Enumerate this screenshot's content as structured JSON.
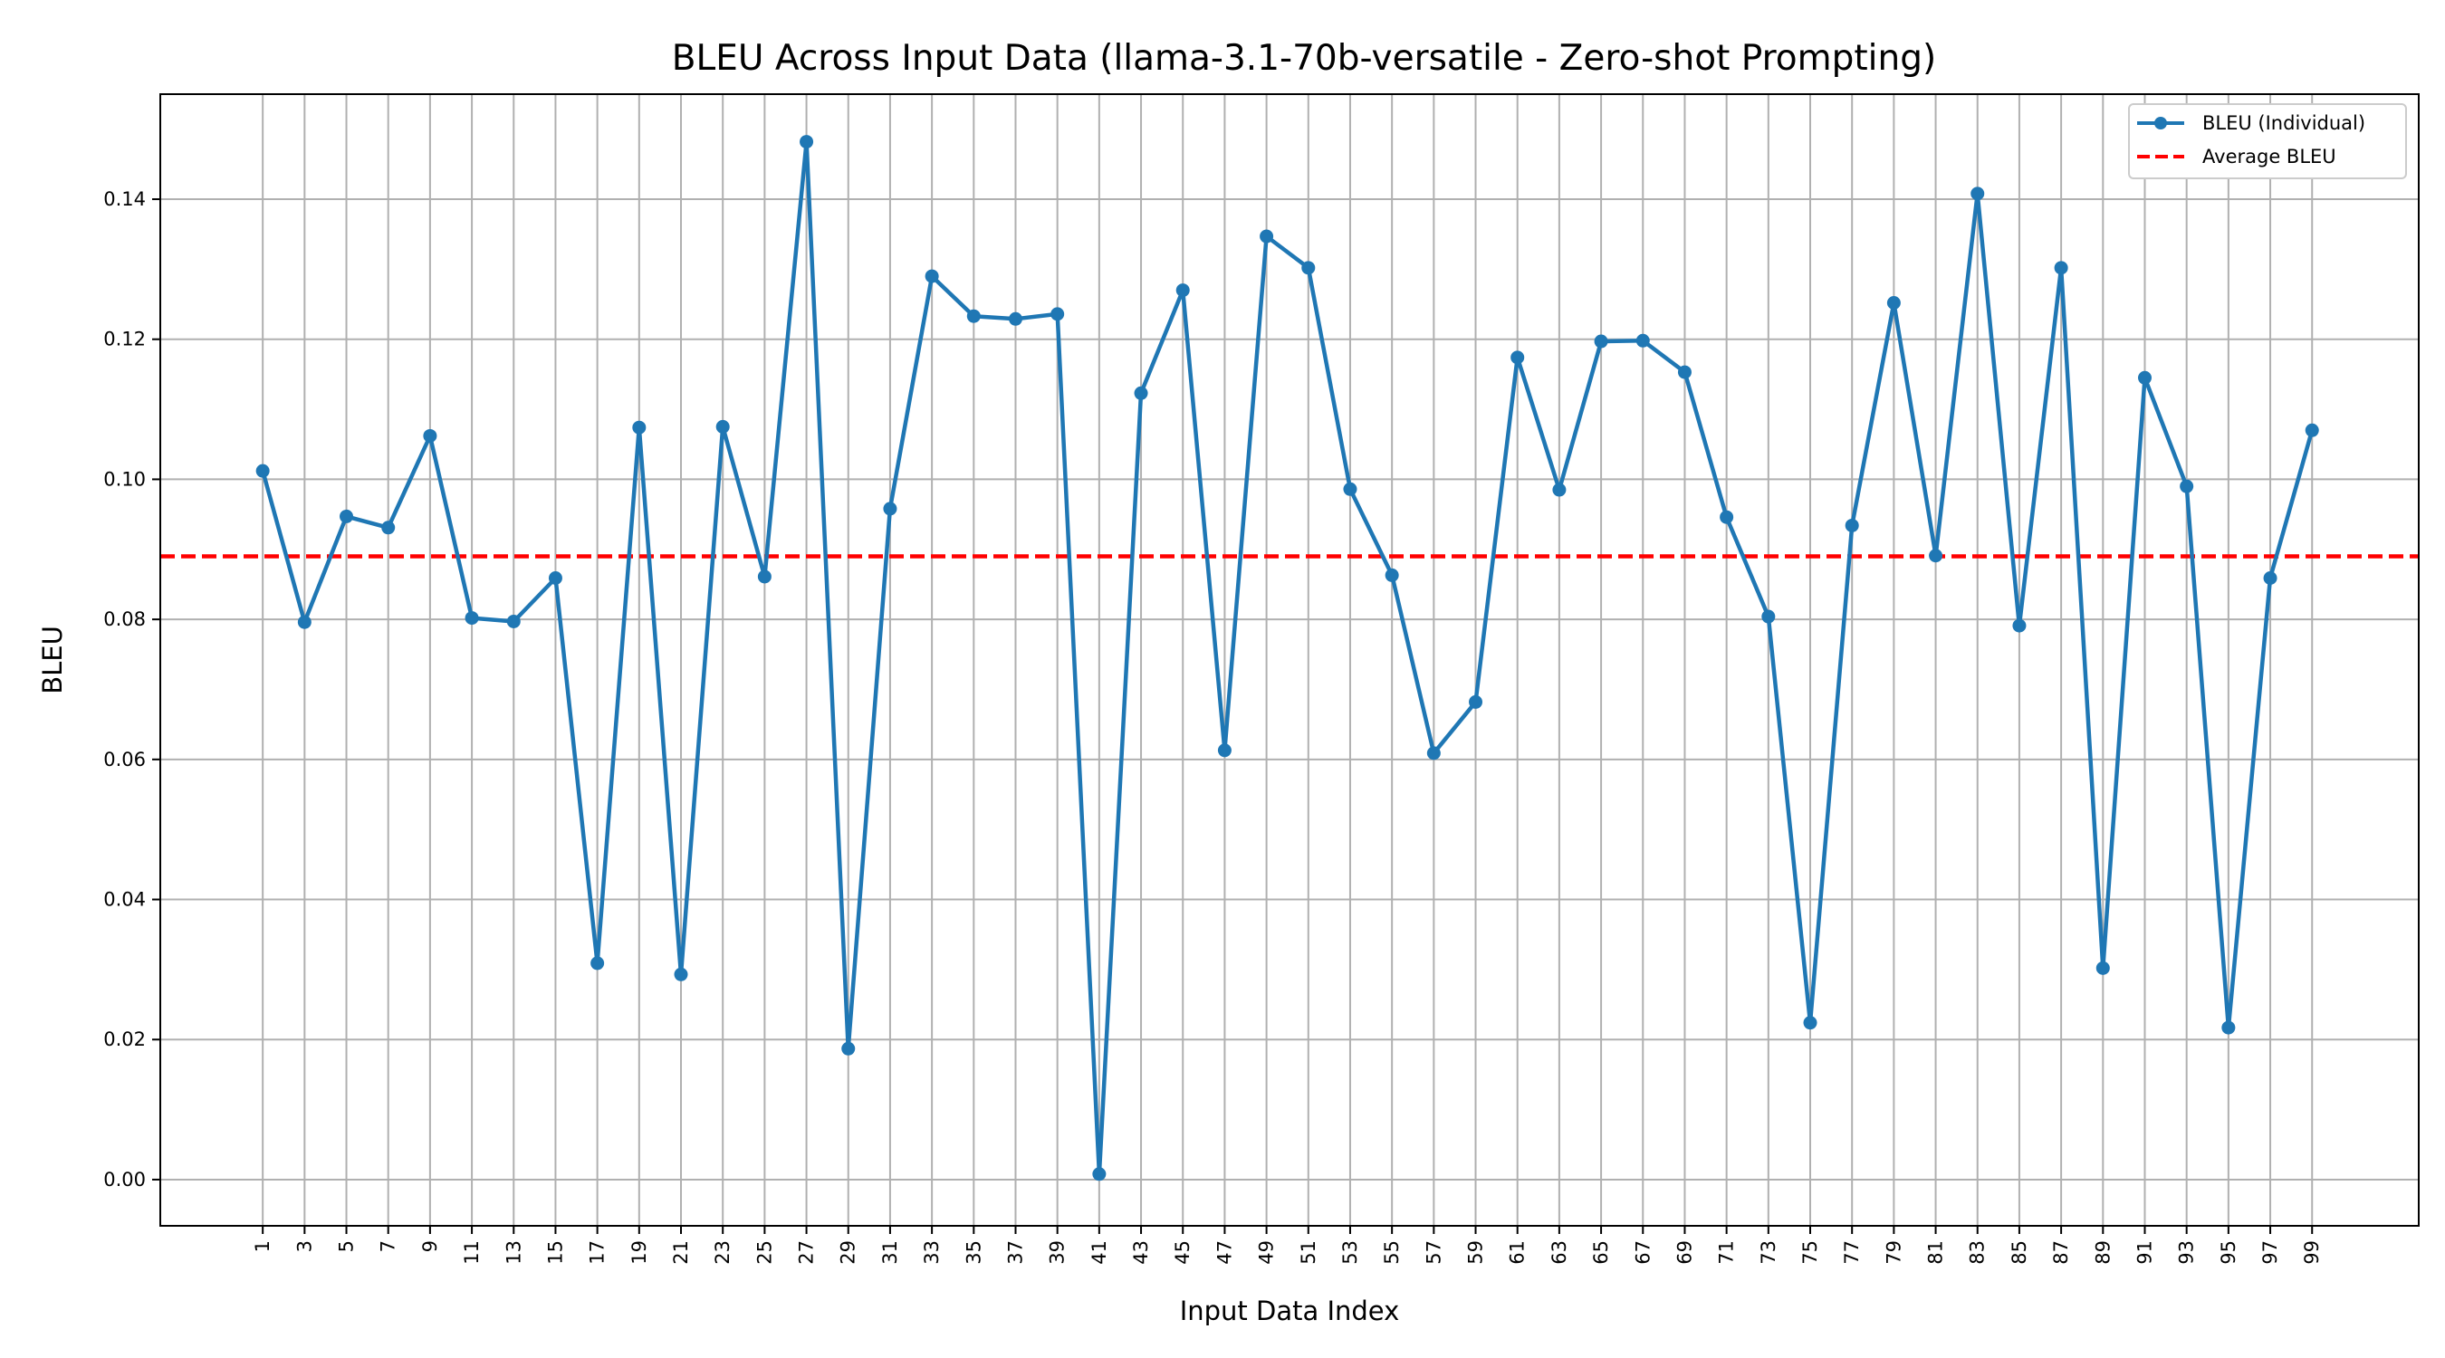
{
  "chart_data": {
    "type": "line",
    "title": "BLEU Across Input Data (llama-3.1-70b-versatile - Zero-shot Prompting)",
    "xlabel": "Input Data Index",
    "ylabel": "BLEU",
    "x_ticks": [
      1,
      3,
      5,
      7,
      9,
      11,
      13,
      15,
      17,
      19,
      21,
      23,
      25,
      27,
      29,
      31,
      33,
      35,
      37,
      39,
      41,
      43,
      45,
      47,
      49,
      51,
      53,
      55,
      57,
      59,
      61,
      63,
      65,
      67,
      69,
      71,
      73,
      75,
      77,
      79,
      81,
      83,
      85,
      87,
      89,
      91,
      93,
      95,
      97,
      99
    ],
    "y_ticks": [
      "0.00",
      "0.02",
      "0.04",
      "0.06",
      "0.08",
      "0.10",
      "0.12",
      "0.14"
    ],
    "xlim": [
      -3.9,
      104.1
    ],
    "ylim": [
      -0.0066,
      0.155
    ],
    "grid": true,
    "legend_position": "top-right",
    "series": [
      {
        "name": "BLEU (Individual)",
        "color": "#1f77b4",
        "marker": "circle",
        "x": [
          1,
          3,
          5,
          7,
          9,
          11,
          13,
          15,
          17,
          19,
          21,
          23,
          25,
          27,
          29,
          31,
          33,
          35,
          37,
          39,
          41,
          43,
          45,
          47,
          49,
          51,
          53,
          55,
          57,
          59,
          61,
          63,
          65,
          67,
          69,
          71,
          73,
          75,
          77,
          79,
          81,
          83,
          85,
          87,
          89,
          91,
          93,
          95,
          97,
          99
        ],
        "y": [
          0.1012,
          0.0796,
          0.0947,
          0.0931,
          0.1062,
          0.0802,
          0.0797,
          0.0859,
          0.0309,
          0.1074,
          0.0293,
          0.1075,
          0.0861,
          0.1482,
          0.0187,
          0.0958,
          0.129,
          0.1233,
          0.1229,
          0.1236,
          0.0008,
          0.1123,
          0.127,
          0.0613,
          0.1347,
          0.1302,
          0.0986,
          0.0863,
          0.0609,
          0.0682,
          0.1174,
          0.0985,
          0.1197,
          0.1198,
          0.1153,
          0.0946,
          0.0804,
          0.0224,
          0.0934,
          0.1252,
          0.0891,
          0.1408,
          0.0791,
          0.1302,
          0.0302,
          0.1145,
          0.099,
          0.0217,
          0.0859,
          0.107
        ]
      },
      {
        "name": "Average BLEU",
        "color": "#ff0000",
        "style": "dashed",
        "value": 0.089
      }
    ]
  }
}
